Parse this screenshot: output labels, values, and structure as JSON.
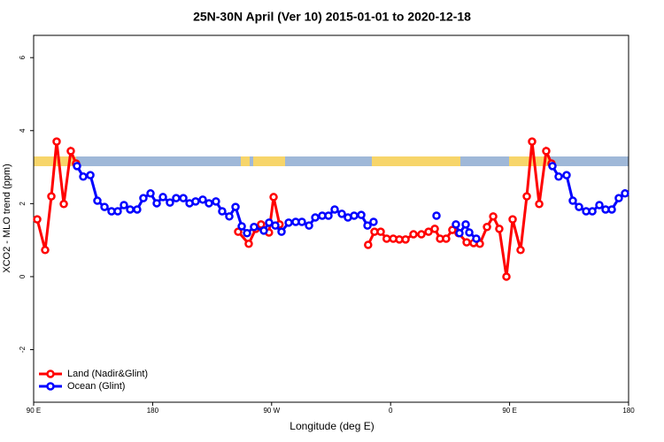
{
  "chart_data": {
    "type": "line",
    "title": "25N-30N April (Ver 10)   2015-01-01 to 2020-12-18",
    "x_label": "Longitude (deg E)",
    "y_label": "XCO2 - MLO trend (ppm)",
    "xlim": [
      90,
      540
    ],
    "ylim": [
      -3.44,
      6.61
    ],
    "xticks": [
      {
        "value": 90,
        "label": "90 E"
      },
      180,
      {
        "value": 270,
        "label": "90 W"
      },
      {
        "value": 360,
        "label": "0"
      },
      {
        "value": 450,
        "label": "90 E"
      },
      {
        "value": 540,
        "label": "180"
      }
    ],
    "yticks": [
      -2,
      0,
      2,
      4,
      6
    ],
    "legend": "bottom-left",
    "series": [
      {
        "name": "Land (Nadir&Glint)",
        "color": "#ff0000",
        "x": [
          92.7,
          98.7,
          103.4,
          107.4,
          112.8,
          118.1,
          122.1,
          null,
          244.7,
          252.7,
          258,
          262,
          268,
          271.5,
          276,
          null,
          343,
          347.8,
          352.5,
          357,
          362,
          366.6,
          371.3,
          377.3,
          383.3,
          388.7,
          393.4,
          397.4,
          402,
          406.7,
          411.4,
          417.5,
          422.8,
          427.5,
          432.9,
          437.6,
          442.2,
          447.6,
          452.3,
          458.3,
          463,
          467,
          472.4,
          477.7,
          481.7
        ],
        "values": [
          1.57,
          0.73,
          2.2,
          3.7,
          1.99,
          3.44,
          3.1,
          null,
          1.23,
          0.9,
          1.31,
          1.43,
          1.21,
          2.18,
          1.43,
          null,
          0.87,
          1.23,
          1.23,
          1.04,
          1.04,
          1.02,
          1.02,
          1.16,
          1.16,
          1.23,
          1.31,
          1.04,
          1.04,
          1.28,
          1.19,
          0.94,
          0.92,
          0.9,
          1.36,
          1.65,
          1.31,
          0.0,
          1.57,
          0.73,
          2.2,
          3.7,
          1.99,
          3.44,
          3.1
        ]
      },
      {
        "name": "Ocean (Glint)",
        "color": "#0000ff",
        "x": [
          122.8,
          127.5,
          132.9,
          138.2,
          143.6,
          148.9,
          153.6,
          158.3,
          163,
          168.3,
          173,
          178.4,
          183.1,
          187.8,
          193.1,
          197.8,
          203.2,
          207.9,
          212.5,
          217.9,
          222.6,
          227.9,
          232.6,
          238,
          242.7,
          247.4,
          251.4,
          256.7,
          264.1,
          268.1,
          272.8,
          277.5,
          282.9,
          288.2,
          292.9,
          298.3,
          303,
          308.3,
          313,
          317.7,
          323.1,
          327.7,
          332.4,
          337.8,
          342.5,
          347.1,
          null,
          394.7,
          null,
          409.4,
          412.1,
          416.8,
          419.5,
          424.8,
          null,
          482.4,
          487.1,
          493.1,
          497.8,
          502.5,
          507.9,
          512.6,
          517.9,
          522.6,
          527.3,
          532.6,
          537.3
        ],
        "values": [
          3.03,
          2.74,
          2.78,
          2.08,
          1.91,
          1.79,
          1.79,
          1.96,
          1.84,
          1.84,
          2.15,
          2.28,
          2.01,
          2.18,
          2.03,
          2.15,
          2.15,
          2.01,
          2.06,
          2.11,
          2.01,
          2.06,
          1.79,
          1.65,
          1.91,
          1.38,
          1.19,
          1.36,
          1.26,
          1.48,
          1.4,
          1.23,
          1.48,
          1.5,
          1.5,
          1.4,
          1.62,
          1.67,
          1.67,
          1.84,
          1.72,
          1.62,
          1.67,
          1.69,
          1.4,
          1.5,
          null,
          1.67,
          null,
          1.43,
          1.19,
          1.43,
          1.21,
          1.04,
          null,
          3.03,
          2.74,
          2.78,
          2.08,
          1.91,
          1.79,
          1.79,
          1.96,
          1.84,
          1.84,
          2.15,
          2.28
        ]
      }
    ]
  }
}
